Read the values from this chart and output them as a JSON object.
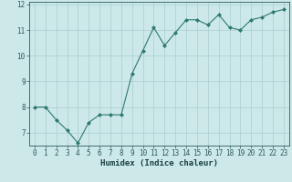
{
  "x": [
    0,
    1,
    2,
    3,
    4,
    5,
    6,
    7,
    8,
    9,
    10,
    11,
    12,
    13,
    14,
    15,
    16,
    17,
    18,
    19,
    20,
    21,
    22,
    23
  ],
  "y": [
    8.0,
    8.0,
    7.5,
    7.1,
    6.6,
    7.4,
    7.7,
    7.7,
    7.7,
    9.3,
    10.2,
    11.1,
    10.4,
    10.9,
    11.4,
    11.4,
    11.2,
    11.6,
    11.1,
    11.0,
    11.4,
    11.5,
    11.7,
    11.8
  ],
  "xlabel": "Humidex (Indice chaleur)",
  "ylim": [
    6.5,
    12.1
  ],
  "xlim": [
    -0.5,
    23.5
  ],
  "yticks": [
    7,
    8,
    9,
    10,
    11,
    12
  ],
  "xticks": [
    0,
    1,
    2,
    3,
    4,
    5,
    6,
    7,
    8,
    9,
    10,
    11,
    12,
    13,
    14,
    15,
    16,
    17,
    18,
    19,
    20,
    21,
    22,
    23
  ],
  "line_color": "#2d7a6e",
  "marker_color": "#2d7a6e",
  "bg_color": "#cce8e8",
  "grid_color": "#aacfcf",
  "tick_label_color": "#2d5a5a",
  "xlabel_color": "#1a4040",
  "xlabel_fontsize": 6.5,
  "tick_fontsize": 5.5
}
